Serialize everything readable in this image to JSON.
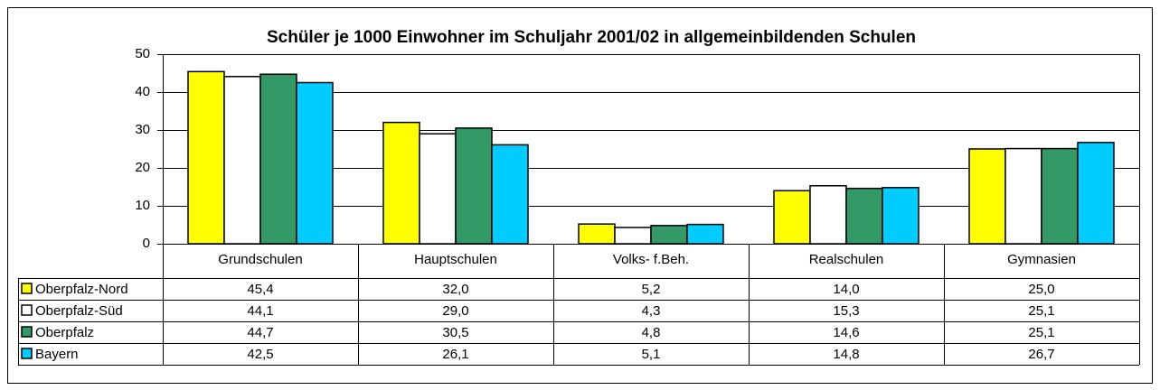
{
  "chart_data": {
    "type": "bar",
    "title": "Schüler je 1000 Einwohner im Schuljahr 2001/02 in allgemeinbildenden Schulen",
    "categories": [
      "Grundschulen",
      "Hauptschulen",
      "Volks- f.Beh.",
      "Realschulen",
      "Gymnasien"
    ],
    "series": [
      {
        "name": "Oberpfalz-Nord",
        "color": "#ffff00",
        "values": [
          45.4,
          32.0,
          5.2,
          14.0,
          25.0
        ],
        "value_labels": [
          "45,4",
          "32,0",
          "5,2",
          "14,0",
          "25,0"
        ]
      },
      {
        "name": "Oberpfalz-Süd",
        "color": "#ffffff",
        "values": [
          44.1,
          29.0,
          4.3,
          15.3,
          25.1
        ],
        "value_labels": [
          "44,1",
          "29,0",
          "4,3",
          "15,3",
          "25,1"
        ]
      },
      {
        "name": "Oberpfalz",
        "color": "#339966",
        "values": [
          44.7,
          30.5,
          4.8,
          14.6,
          25.1
        ],
        "value_labels": [
          "44,7",
          "30,5",
          "4,8",
          "14,6",
          "25,1"
        ]
      },
      {
        "name": "Bayern",
        "color": "#00ccff",
        "values": [
          42.5,
          26.1,
          5.1,
          14.8,
          26.7
        ],
        "value_labels": [
          "42,5",
          "26,1",
          "5,1",
          "14,8",
          "26,7"
        ]
      }
    ],
    "ylim": [
      0,
      50
    ],
    "yticks": [
      0,
      10,
      20,
      30,
      40,
      50
    ],
    "grid": true
  }
}
